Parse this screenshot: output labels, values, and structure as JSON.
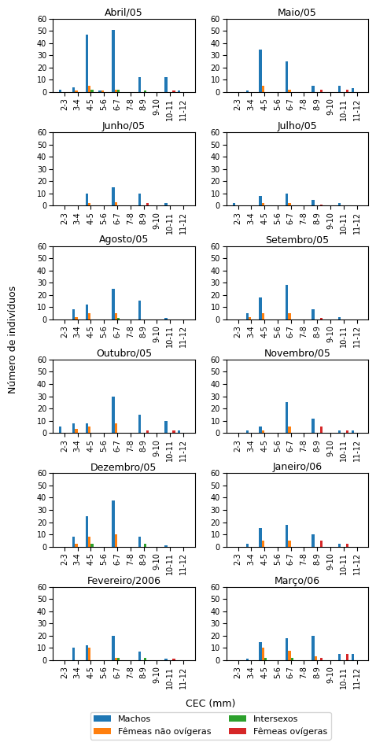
{
  "xlabel": "CEC (mm)",
  "ylabel": "Número de indivíduos",
  "legend": "lower center",
  "chart_data": [
    {
      "type": "bar",
      "title": "Abril/05",
      "categories": [
        "2-3",
        "3-4",
        "4-5",
        "5-6",
        "6-7",
        "7-8",
        "8-9",
        "9-10",
        "10-11",
        "11-12"
      ],
      "series": [
        {
          "name": "Machos",
          "values": [
            2,
            4,
            47,
            1,
            51,
            0,
            12,
            0,
            12,
            1
          ]
        },
        {
          "name": "Fêmeas não ovígeras",
          "values": [
            0,
            1,
            5,
            1,
            2,
            0,
            0,
            0,
            0,
            0
          ]
        },
        {
          "name": "Intersexos",
          "values": [
            0,
            0,
            2,
            0,
            2,
            0,
            1,
            0,
            0,
            0
          ]
        },
        {
          "name": "Fêmeas ovígeras",
          "values": [
            0,
            0,
            0,
            0,
            0,
            0,
            0,
            0,
            1,
            0
          ]
        }
      ],
      "ylim": [
        0,
        60
      ],
      "yticks": [
        0,
        10,
        20,
        30,
        40,
        50,
        60
      ]
    },
    {
      "type": "bar",
      "title": "Maio/05",
      "categories": [
        "2-3",
        "3-4",
        "4-5",
        "5-6",
        "6-7",
        "7-8",
        "8-9",
        "9-10",
        "10-11",
        "11-12"
      ],
      "series": [
        {
          "name": "Machos",
          "values": [
            0,
            1,
            35,
            0,
            25,
            0,
            5,
            0,
            5,
            3
          ]
        },
        {
          "name": "Fêmeas não ovígeras",
          "values": [
            0,
            0,
            5,
            0,
            2,
            0,
            0,
            0,
            0,
            0
          ]
        },
        {
          "name": "Intersexos",
          "values": [
            0,
            0,
            0,
            0,
            0,
            0,
            0,
            0,
            0,
            0
          ]
        },
        {
          "name": "Fêmeas ovígeras",
          "values": [
            0,
            0,
            0,
            0,
            0,
            0,
            2,
            0,
            2,
            0
          ]
        }
      ],
      "ylim": [
        0,
        60
      ],
      "yticks": [
        0,
        10,
        20,
        30,
        40,
        50,
        60
      ]
    },
    {
      "type": "bar",
      "title": "Junho/05",
      "categories": [
        "2-3",
        "3-4",
        "4-5",
        "5-6",
        "6-7",
        "7-8",
        "8-9",
        "9-10",
        "10-11",
        "11-12"
      ],
      "series": [
        {
          "name": "Machos",
          "values": [
            0,
            0,
            10,
            0,
            15,
            0,
            10,
            0,
            2,
            0
          ]
        },
        {
          "name": "Fêmeas não ovígeras",
          "values": [
            0,
            0,
            2,
            0,
            3,
            0,
            0,
            0,
            0,
            0
          ]
        },
        {
          "name": "Intersexos",
          "values": [
            0,
            0,
            0,
            0,
            0,
            0,
            0,
            0,
            0,
            0
          ]
        },
        {
          "name": "Fêmeas ovígeras",
          "values": [
            0,
            0,
            0,
            0,
            0,
            0,
            2,
            0,
            0,
            0
          ]
        }
      ],
      "ylim": [
        0,
        60
      ],
      "yticks": [
        0,
        10,
        20,
        30,
        40,
        50,
        60
      ]
    },
    {
      "type": "bar",
      "title": "Julho/05",
      "categories": [
        "2-3",
        "3-4",
        "4-5",
        "5-6",
        "6-7",
        "7-8",
        "8-9",
        "9-10",
        "10-11",
        "11-12"
      ],
      "series": [
        {
          "name": "Machos",
          "values": [
            2,
            0,
            8,
            0,
            10,
            0,
            5,
            0,
            2,
            0
          ]
        },
        {
          "name": "Fêmeas não ovígeras",
          "values": [
            0,
            0,
            2,
            0,
            2,
            0,
            0,
            0,
            0,
            0
          ]
        },
        {
          "name": "Intersexos",
          "values": [
            0,
            0,
            0,
            0,
            0,
            0,
            0,
            0,
            0,
            0
          ]
        },
        {
          "name": "Fêmeas ovígeras",
          "values": [
            0,
            0,
            0,
            0,
            0,
            0,
            1,
            0,
            0,
            0
          ]
        }
      ],
      "ylim": [
        0,
        60
      ],
      "yticks": [
        0,
        10,
        20,
        30,
        40,
        50,
        60
      ]
    },
    {
      "type": "bar",
      "title": "Agosto/05",
      "categories": [
        "2-3",
        "3-4",
        "4-5",
        "5-6",
        "6-7",
        "7-8",
        "8-9",
        "9-10",
        "10-11",
        "11-12"
      ],
      "series": [
        {
          "name": "Machos",
          "values": [
            0,
            8,
            12,
            0,
            25,
            0,
            15,
            0,
            1,
            0
          ]
        },
        {
          "name": "Fêmeas não ovígeras",
          "values": [
            0,
            2,
            5,
            0,
            5,
            0,
            0,
            0,
            0,
            0
          ]
        },
        {
          "name": "Intersexos",
          "values": [
            0,
            0,
            0,
            0,
            1,
            0,
            0,
            0,
            0,
            0
          ]
        },
        {
          "name": "Fêmeas ovígeras",
          "values": [
            0,
            0,
            0,
            0,
            0,
            0,
            0,
            0,
            0,
            0
          ]
        }
      ],
      "ylim": [
        0,
        60
      ],
      "yticks": [
        0,
        10,
        20,
        30,
        40,
        50,
        60
      ]
    },
    {
      "type": "bar",
      "title": "Setembro/05",
      "categories": [
        "2-3",
        "3-4",
        "4-5",
        "5-6",
        "6-7",
        "7-8",
        "8-9",
        "9-10",
        "10-11",
        "11-12"
      ],
      "series": [
        {
          "name": "Machos",
          "values": [
            0,
            5,
            18,
            0,
            28,
            0,
            8,
            0,
            2,
            0
          ]
        },
        {
          "name": "Fêmeas não ovígeras",
          "values": [
            0,
            2,
            5,
            0,
            5,
            0,
            0,
            0,
            0,
            0
          ]
        },
        {
          "name": "Intersexos",
          "values": [
            0,
            0,
            0,
            0,
            0,
            0,
            0,
            0,
            0,
            0
          ]
        },
        {
          "name": "Fêmeas ovígeras",
          "values": [
            0,
            0,
            0,
            0,
            0,
            0,
            1,
            0,
            0,
            0
          ]
        }
      ],
      "ylim": [
        0,
        60
      ],
      "yticks": [
        0,
        10,
        20,
        30,
        40,
        50,
        60
      ]
    },
    {
      "type": "bar",
      "title": "Outubro/05",
      "categories": [
        "2-3",
        "3-4",
        "4-5",
        "5-6",
        "6-7",
        "7-8",
        "8-9",
        "9-10",
        "10-11",
        "11-12"
      ],
      "series": [
        {
          "name": "Machos",
          "values": [
            5,
            8,
            8,
            0,
            30,
            0,
            15,
            0,
            10,
            2
          ]
        },
        {
          "name": "Fêmeas não ovígeras",
          "values": [
            0,
            3,
            5,
            0,
            8,
            0,
            0,
            0,
            0,
            0
          ]
        },
        {
          "name": "Intersexos",
          "values": [
            0,
            0,
            0,
            0,
            0,
            0,
            0,
            0,
            0,
            0
          ]
        },
        {
          "name": "Fêmeas ovígeras",
          "values": [
            0,
            0,
            0,
            0,
            0,
            0,
            2,
            0,
            2,
            0
          ]
        }
      ],
      "ylim": [
        0,
        60
      ],
      "yticks": [
        0,
        10,
        20,
        30,
        40,
        50,
        60
      ]
    },
    {
      "type": "bar",
      "title": "Novembro/05",
      "categories": [
        "2-3",
        "3-4",
        "4-5",
        "5-6",
        "6-7",
        "7-8",
        "8-9",
        "9-10",
        "10-11",
        "11-12"
      ],
      "series": [
        {
          "name": "Machos",
          "values": [
            0,
            2,
            5,
            0,
            25,
            0,
            12,
            0,
            2,
            2
          ]
        },
        {
          "name": "Fêmeas não ovígeras",
          "values": [
            0,
            0,
            2,
            0,
            5,
            0,
            0,
            0,
            0,
            0
          ]
        },
        {
          "name": "Intersexos",
          "values": [
            0,
            0,
            0,
            0,
            0,
            0,
            0,
            0,
            0,
            0
          ]
        },
        {
          "name": "Fêmeas ovígeras",
          "values": [
            0,
            0,
            0,
            0,
            0,
            0,
            5,
            0,
            2,
            0
          ]
        }
      ],
      "ylim": [
        0,
        60
      ],
      "yticks": [
        0,
        10,
        20,
        30,
        40,
        50,
        60
      ]
    },
    {
      "type": "bar",
      "title": "Dezembro/05",
      "categories": [
        "2-3",
        "3-4",
        "4-5",
        "5-6",
        "6-7",
        "7-8",
        "8-9",
        "9-10",
        "10-11",
        "11-12"
      ],
      "series": [
        {
          "name": "Machos",
          "values": [
            0,
            8,
            25,
            0,
            38,
            0,
            8,
            0,
            1,
            0
          ]
        },
        {
          "name": "Fêmeas não ovígeras",
          "values": [
            0,
            2,
            8,
            0,
            10,
            0,
            0,
            0,
            0,
            0
          ]
        },
        {
          "name": "Intersexos",
          "values": [
            0,
            0,
            2,
            0,
            0,
            0,
            2,
            0,
            0,
            0
          ]
        },
        {
          "name": "Fêmeas ovígeras",
          "values": [
            0,
            0,
            0,
            0,
            0,
            0,
            0,
            0,
            0,
            0
          ]
        }
      ],
      "ylim": [
        0,
        60
      ],
      "yticks": [
        0,
        10,
        20,
        30,
        40,
        50,
        60
      ]
    },
    {
      "type": "bar",
      "title": "Janeiro/06",
      "categories": [
        "2-3",
        "3-4",
        "4-5",
        "5-6",
        "6-7",
        "7-8",
        "8-9",
        "9-10",
        "10-11",
        "11-12"
      ],
      "series": [
        {
          "name": "Machos",
          "values": [
            0,
            2,
            15,
            0,
            18,
            0,
            10,
            0,
            2,
            0
          ]
        },
        {
          "name": "Fêmeas não ovígeras",
          "values": [
            0,
            0,
            5,
            0,
            5,
            0,
            0,
            0,
            0,
            0
          ]
        },
        {
          "name": "Intersexos",
          "values": [
            0,
            0,
            0,
            0,
            0,
            0,
            0,
            0,
            0,
            0
          ]
        },
        {
          "name": "Fêmeas ovígeras",
          "values": [
            0,
            0,
            0,
            0,
            0,
            0,
            5,
            0,
            2,
            0
          ]
        }
      ],
      "ylim": [
        0,
        60
      ],
      "yticks": [
        0,
        10,
        20,
        30,
        40,
        50,
        60
      ]
    },
    {
      "type": "bar",
      "title": "Fevereiro/2006",
      "categories": [
        "2-3",
        "3-4",
        "4-5",
        "5-6",
        "6-7",
        "7-8",
        "8-9",
        "9-10",
        "10-11",
        "11-12"
      ],
      "series": [
        {
          "name": "Machos",
          "values": [
            0,
            10,
            12,
            0,
            20,
            0,
            7,
            0,
            1,
            0
          ]
        },
        {
          "name": "Fêmeas não ovígeras",
          "values": [
            0,
            0,
            10,
            0,
            2,
            0,
            0,
            0,
            0,
            0
          ]
        },
        {
          "name": "Intersexos",
          "values": [
            0,
            0,
            0,
            0,
            2,
            0,
            2,
            0,
            0,
            0
          ]
        },
        {
          "name": "Fêmeas ovígeras",
          "values": [
            0,
            0,
            0,
            0,
            0,
            0,
            0,
            0,
            1,
            0
          ]
        }
      ],
      "ylim": [
        0,
        60
      ],
      "yticks": [
        0,
        10,
        20,
        30,
        40,
        50,
        60
      ]
    },
    {
      "type": "bar",
      "title": "Março/06",
      "categories": [
        "2-3",
        "3-4",
        "4-5",
        "5-6",
        "6-7",
        "7-8",
        "8-9",
        "9-10",
        "10-11",
        "11-12"
      ],
      "series": [
        {
          "name": "Machos",
          "values": [
            0,
            1,
            15,
            0,
            18,
            0,
            20,
            0,
            5,
            5
          ]
        },
        {
          "name": "Fêmeas não ovígeras",
          "values": [
            0,
            0,
            10,
            0,
            8,
            0,
            3,
            0,
            0,
            0
          ]
        },
        {
          "name": "Intersexos",
          "values": [
            0,
            0,
            2,
            0,
            2,
            0,
            0,
            0,
            0,
            0
          ]
        },
        {
          "name": "Fêmeas ovígeras",
          "values": [
            0,
            0,
            0,
            0,
            0,
            0,
            2,
            0,
            5,
            0
          ]
        }
      ],
      "ylim": [
        0,
        60
      ],
      "yticks": [
        0,
        10,
        20,
        30,
        40,
        50,
        60
      ]
    }
  ]
}
